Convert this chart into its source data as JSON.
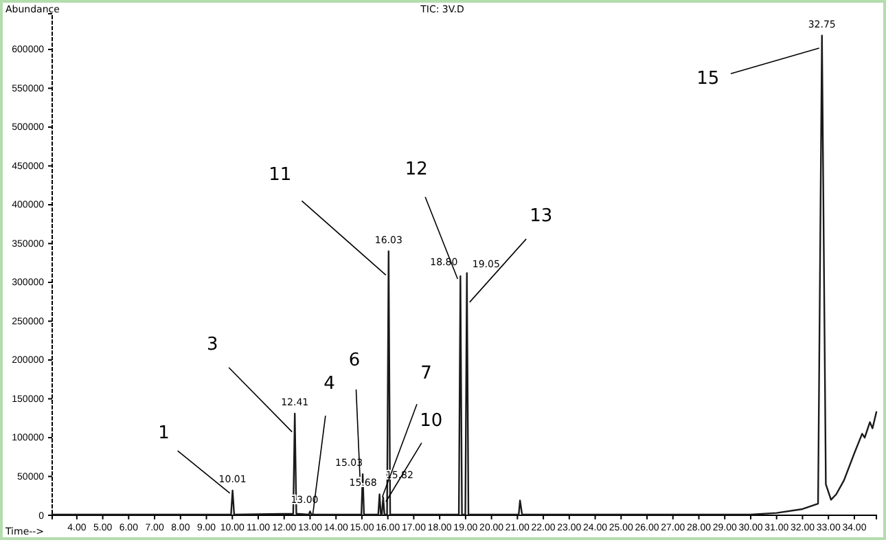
{
  "chart_data": {
    "type": "line",
    "title": "TIC: 3V.D",
    "xlabel": "Time-->",
    "ylabel": "Abundance",
    "xlim": [
      3.05,
      34.85
    ],
    "ylim": [
      0,
      646000
    ],
    "xticks": [
      {
        "value": 4,
        "label": "4.00"
      },
      {
        "value": 5,
        "label": "5.00"
      },
      {
        "value": 6,
        "label": "6.00"
      },
      {
        "value": 7,
        "label": "7.00"
      },
      {
        "value": 8,
        "label": "8.00"
      },
      {
        "value": 9,
        "label": "9.00"
      },
      {
        "value": 10,
        "label": "10.00"
      },
      {
        "value": 11,
        "label": "11.00"
      },
      {
        "value": 12,
        "label": "12.00"
      },
      {
        "value": 13,
        "label": "13.00"
      },
      {
        "value": 14,
        "label": "14.00"
      },
      {
        "value": 15,
        "label": "15.00"
      },
      {
        "value": 16,
        "label": "16.00"
      },
      {
        "value": 17,
        "label": "17.00"
      },
      {
        "value": 18,
        "label": "18.00"
      },
      {
        "value": 19,
        "label": "19.00"
      },
      {
        "value": 20,
        "label": "20.00"
      },
      {
        "value": 21,
        "label": "21.00"
      },
      {
        "value": 22,
        "label": "22.00"
      },
      {
        "value": 23,
        "label": "23.00"
      },
      {
        "value": 24,
        "label": "24.00"
      },
      {
        "value": 25,
        "label": "25.00"
      },
      {
        "value": 26,
        "label": "26.00"
      },
      {
        "value": 27,
        "label": "27.00"
      },
      {
        "value": 28,
        "label": "28.00"
      },
      {
        "value": 29,
        "label": "29.00"
      },
      {
        "value": 30,
        "label": "30.00"
      },
      {
        "value": 31,
        "label": "31.00"
      },
      {
        "value": 32,
        "label": "32.00"
      },
      {
        "value": 33,
        "label": "33.00"
      },
      {
        "value": 34,
        "label": "34.00"
      }
    ],
    "yticks": [
      0,
      50000,
      100000,
      150000,
      200000,
      250000,
      300000,
      350000,
      400000,
      450000,
      500000,
      550000,
      600000
    ],
    "grid": false,
    "marker": "none",
    "line_style": "solid",
    "series": [
      {
        "color": "#1a1a1a",
        "x": [
          3.05,
          9.95,
          10.01,
          10.07,
          12.35,
          12.41,
          12.47,
          12.95,
          13.0,
          13.05,
          14.98,
          15.03,
          15.08,
          15.63,
          15.68,
          15.73,
          15.77,
          15.82,
          15.87,
          15.97,
          16.03,
          16.09,
          18.74,
          18.8,
          18.86,
          18.99,
          19.05,
          19.11,
          21.05,
          21.1,
          21.18,
          30.0,
          31.0,
          32.0,
          32.6,
          32.75,
          32.9,
          33.0,
          33.1,
          33.3,
          33.6,
          34.0,
          34.3,
          34.4,
          34.6,
          34.7,
          34.85
        ],
        "values": [
          1000,
          1000,
          32000,
          1000,
          2000,
          131000,
          2000,
          1000,
          5000,
          1000,
          1000,
          53000,
          1000,
          1000,
          27000,
          1000,
          1000,
          23000,
          1000,
          1000,
          340000,
          1000,
          1000,
          308000,
          1000,
          1000,
          312000,
          1000,
          1000,
          19000,
          1000,
          1000,
          3000,
          8000,
          15000,
          618000,
          40000,
          30000,
          20000,
          27000,
          45000,
          80000,
          105000,
          100000,
          120000,
          112000,
          133000
        ]
      }
    ],
    "annotations": [
      {
        "text": "10.01",
        "x": 10.01,
        "y": 32000
      },
      {
        "text": "12.41",
        "x": 12.41,
        "y": 131000
      },
      {
        "text": "13.00",
        "x": 13.0,
        "y": 5000
      },
      {
        "text": "15.03",
        "x": 15.03,
        "y": 53000
      },
      {
        "text": "15.68",
        "x": 15.68,
        "y": 27000
      },
      {
        "text": "15.82",
        "x": 15.82,
        "y": 23000
      },
      {
        "text": "16.03",
        "x": 16.03,
        "y": 340000
      },
      {
        "text": "18.80",
        "x": 18.8,
        "y": 308000
      },
      {
        "text": "19.05",
        "x": 19.05,
        "y": 312000
      },
      {
        "text": "32.75",
        "x": 32.75,
        "y": 618000
      },
      {
        "text": "1",
        "x": 10.01,
        "y": 32000
      },
      {
        "text": "3",
        "x": 12.41,
        "y": 111000
      },
      {
        "text": "4",
        "x": 13.0,
        "y": 5000
      },
      {
        "text": "6",
        "x": 15.03,
        "y": 53000
      },
      {
        "text": "7",
        "x": 15.68,
        "y": 27000
      },
      {
        "text": "10",
        "x": 15.82,
        "y": 21000
      },
      {
        "text": "11",
        "x": 16.03,
        "y": 313000
      },
      {
        "text": "12",
        "x": 18.8,
        "y": 308000
      },
      {
        "text": "13",
        "x": 19.05,
        "y": 278000
      },
      {
        "text": "15",
        "x": 32.75,
        "y": 600000
      }
    ]
  }
}
